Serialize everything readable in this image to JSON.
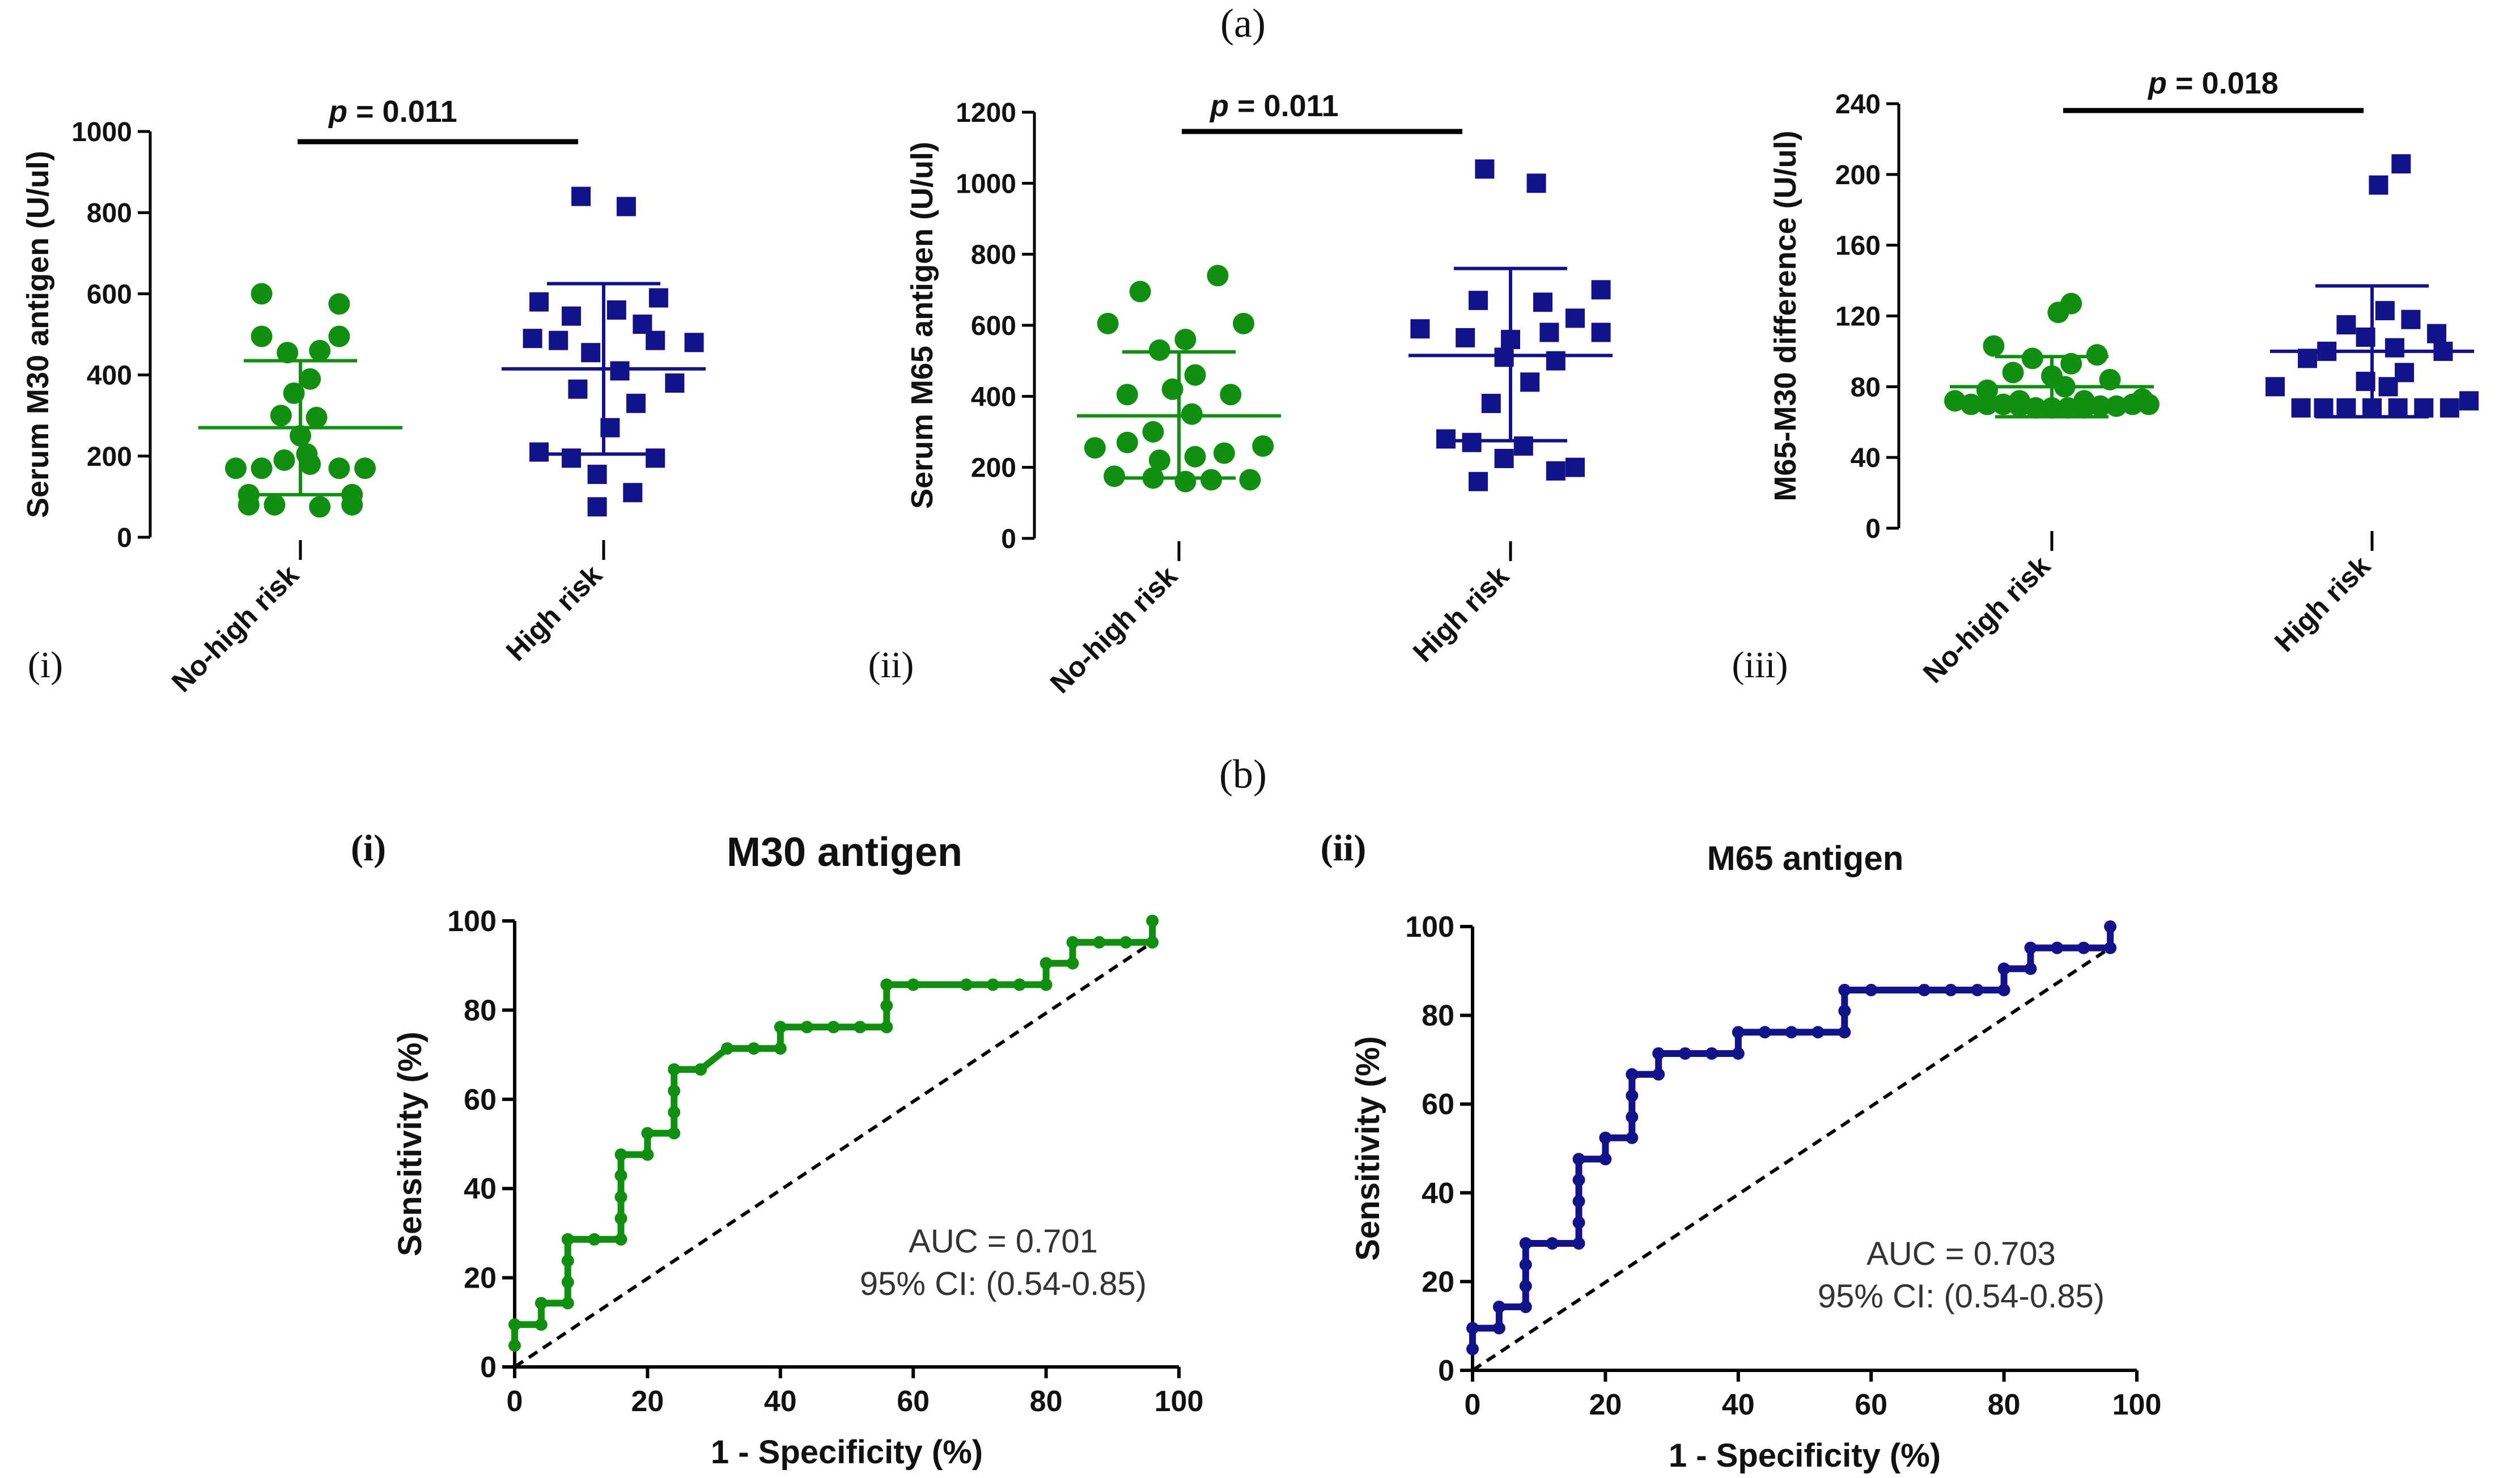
{
  "figure": {
    "label_a": "(a)",
    "label_b": "(b)"
  },
  "colors": {
    "green": "#118f11",
    "blue": "#12128a",
    "black": "#000000"
  },
  "chart_data": [
    {
      "id": "a-i",
      "type": "scatter",
      "panel_label": "(i)",
      "ylabel": "Serum M30 antigen (U/ul)",
      "ylim": [
        0,
        1000
      ],
      "yticks": [
        "0",
        "200",
        "400",
        "600",
        "800",
        "1000"
      ],
      "categories": [
        "No-high risk",
        "High risk"
      ],
      "p_label": "p",
      "p_value": "= 0.011",
      "series": [
        {
          "name": "No-high risk",
          "color": "#118f11",
          "marker": "circle",
          "mean": 270,
          "sd_low": 105,
          "sd_high": 435,
          "points": [
            [
              -0.12,
              600
            ],
            [
              0.12,
              575
            ],
            [
              -0.12,
              495
            ],
            [
              0.12,
              495
            ],
            [
              -0.04,
              455
            ],
            [
              0.06,
              460
            ],
            [
              0.03,
              390
            ],
            [
              -0.02,
              355
            ],
            [
              -0.06,
              300
            ],
            [
              0.05,
              295
            ],
            [
              0,
              250
            ],
            [
              0.02,
              205
            ],
            [
              -0.05,
              190
            ],
            [
              0.03,
              180
            ],
            [
              -0.2,
              170
            ],
            [
              -0.12,
              170
            ],
            [
              0.12,
              170
            ],
            [
              0.2,
              170
            ],
            [
              -0.16,
              105
            ],
            [
              0.16,
              105
            ],
            [
              -0.08,
              80
            ],
            [
              0.06,
              75
            ],
            [
              -0.16,
              80
            ],
            [
              0.16,
              80
            ]
          ]
        },
        {
          "name": "High risk",
          "color": "#12128a",
          "marker": "square",
          "mean": 415,
          "sd_low": 205,
          "sd_high": 625,
          "points": [
            [
              -0.07,
              840
            ],
            [
              0.07,
              815
            ],
            [
              -0.2,
              580
            ],
            [
              0.17,
              590
            ],
            [
              0.04,
              560
            ],
            [
              -0.1,
              545
            ],
            [
              0.12,
              525
            ],
            [
              -0.22,
              490
            ],
            [
              -0.14,
              485
            ],
            [
              0.16,
              485
            ],
            [
              0.28,
              480
            ],
            [
              -0.04,
              455
            ],
            [
              0.05,
              410
            ],
            [
              0.22,
              380
            ],
            [
              -0.08,
              365
            ],
            [
              0.1,
              330
            ],
            [
              0.02,
              270
            ],
            [
              -0.2,
              210
            ],
            [
              -0.1,
              195
            ],
            [
              0.16,
              195
            ],
            [
              -0.02,
              155
            ],
            [
              0.09,
              110
            ],
            [
              -0.02,
              75
            ]
          ]
        }
      ]
    },
    {
      "id": "a-ii",
      "type": "scatter",
      "panel_label": "(ii)",
      "ylabel": "Serum M65 antigen (U/ul)",
      "ylim": [
        0,
        1200
      ],
      "yticks": [
        "0",
        "200",
        "400",
        "600",
        "800",
        "1000",
        "1200"
      ],
      "categories": [
        "No-high risk",
        "High risk"
      ],
      "p_label": "p",
      "p_value": "= 0.011",
      "series": [
        {
          "name": "No-high risk",
          "color": "#118f11",
          "marker": "circle",
          "mean": 345,
          "sd_low": 170,
          "sd_high": 525,
          "points": [
            [
              0.12,
              740
            ],
            [
              -0.12,
              695
            ],
            [
              -0.22,
              605
            ],
            [
              0.2,
              605
            ],
            [
              0.02,
              560
            ],
            [
              -0.06,
              530
            ],
            [
              0.05,
              460
            ],
            [
              -0.02,
              420
            ],
            [
              -0.16,
              405
            ],
            [
              0.16,
              405
            ],
            [
              0.04,
              350
            ],
            [
              -0.08,
              300
            ],
            [
              -0.26,
              255
            ],
            [
              -0.16,
              270
            ],
            [
              0.26,
              260
            ],
            [
              0.14,
              240
            ],
            [
              0.05,
              230
            ],
            [
              -0.06,
              220
            ],
            [
              -0.2,
              175
            ],
            [
              -0.08,
              170
            ],
            [
              0.1,
              165
            ],
            [
              0.22,
              165
            ],
            [
              0.02,
              160
            ]
          ]
        },
        {
          "name": "High risk",
          "color": "#12128a",
          "marker": "square",
          "mean": 515,
          "sd_low": 275,
          "sd_high": 760,
          "points": [
            [
              -0.08,
              1040
            ],
            [
              0.08,
              1000
            ],
            [
              -0.28,
              590
            ],
            [
              0.28,
              700
            ],
            [
              0.1,
              665
            ],
            [
              -0.1,
              670
            ],
            [
              0.2,
              620
            ],
            [
              0.12,
              580
            ],
            [
              -0.14,
              565
            ],
            [
              0,
              560
            ],
            [
              0.28,
              580
            ],
            [
              -0.02,
              510
            ],
            [
              0.14,
              500
            ],
            [
              0.06,
              440
            ],
            [
              -0.06,
              380
            ],
            [
              -0.2,
              280
            ],
            [
              -0.12,
              270
            ],
            [
              -0.02,
              225
            ],
            [
              0.04,
              260
            ],
            [
              0.14,
              190
            ],
            [
              -0.1,
              160
            ],
            [
              0.2,
              200
            ]
          ]
        }
      ]
    },
    {
      "id": "a-iii",
      "type": "scatter",
      "panel_label": "(iii)",
      "ylabel": "M65-M30 difference (U/ul)",
      "ylim": [
        0,
        240
      ],
      "yticks": [
        "0",
        "40",
        "80",
        "120",
        "160",
        "200",
        "240"
      ],
      "categories": [
        "No-high risk",
        "High risk"
      ],
      "p_label": "p",
      "p_value": "= 0.018",
      "series": [
        {
          "name": "No-high risk",
          "color": "#118f11",
          "marker": "circle",
          "mean": 80,
          "sd_low": 63,
          "sd_high": 97,
          "points": [
            [
              0.06,
              127
            ],
            [
              0.02,
              122
            ],
            [
              -0.18,
              103
            ],
            [
              0.14,
              98
            ],
            [
              -0.06,
              96
            ],
            [
              0.06,
              93
            ],
            [
              -0.12,
              88
            ],
            [
              0,
              86
            ],
            [
              0.18,
              84
            ],
            [
              -0.2,
              78
            ],
            [
              0.04,
              80
            ],
            [
              -0.1,
              72
            ],
            [
              0.1,
              72
            ],
            [
              0.28,
              73
            ],
            [
              -0.3,
              72
            ],
            [
              -0.25,
              70
            ],
            [
              -0.2,
              70
            ],
            [
              -0.15,
              70
            ],
            [
              -0.1,
              69
            ],
            [
              -0.05,
              68
            ],
            [
              0,
              68
            ],
            [
              0.05,
              68
            ],
            [
              0.1,
              68
            ],
            [
              0.15,
              69
            ],
            [
              0.2,
              69
            ],
            [
              0.25,
              70
            ],
            [
              0.3,
              70
            ]
          ]
        },
        {
          "name": "High risk",
          "color": "#12128a",
          "marker": "square",
          "mean": 100,
          "sd_low": 63,
          "sd_high": 137,
          "points": [
            [
              0.09,
              206
            ],
            [
              0.02,
              194
            ],
            [
              0.04,
              123
            ],
            [
              -0.08,
              115
            ],
            [
              0.12,
              118
            ],
            [
              0.2,
              110
            ],
            [
              -0.02,
              108
            ],
            [
              0.07,
              102
            ],
            [
              -0.14,
              100
            ],
            [
              0.22,
              100
            ],
            [
              -0.2,
              96
            ],
            [
              0.1,
              88
            ],
            [
              -0.02,
              83
            ],
            [
              0.05,
              80
            ],
            [
              -0.3,
              80
            ],
            [
              0.3,
              72
            ],
            [
              -0.22,
              68
            ],
            [
              -0.15,
              68
            ],
            [
              -0.08,
              68
            ],
            [
              0,
              68
            ],
            [
              0.08,
              68
            ],
            [
              0.16,
              68
            ],
            [
              0.24,
              68
            ]
          ]
        }
      ]
    },
    {
      "id": "b-i",
      "type": "line",
      "panel_label": "(i)",
      "title": "M30 antigen",
      "xlabel": "1 - Specificity (%)",
      "ylabel": "Sensitivity (%)",
      "xlim": [
        0,
        100
      ],
      "ylim": [
        0,
        100
      ],
      "xticks": [
        "0",
        "20",
        "40",
        "60",
        "80",
        "100"
      ],
      "yticks": [
        "0",
        "20",
        "40",
        "60",
        "80",
        "100"
      ],
      "color": "#118f11",
      "auc_text": "AUC = 0.701",
      "ci_text": "95% CI: (0.54-0.85)",
      "roc": [
        [
          0,
          4.8
        ],
        [
          0,
          9.5
        ],
        [
          4,
          9.5
        ],
        [
          4,
          14.3
        ],
        [
          8,
          14.3
        ],
        [
          8,
          19
        ],
        [
          8,
          23.8
        ],
        [
          8,
          28.6
        ],
        [
          12,
          28.6
        ],
        [
          16,
          28.6
        ],
        [
          16,
          33.3
        ],
        [
          16,
          38.1
        ],
        [
          16,
          42.9
        ],
        [
          16,
          47.6
        ],
        [
          20,
          47.6
        ],
        [
          20,
          52.4
        ],
        [
          24,
          52.4
        ],
        [
          24,
          57.1
        ],
        [
          24,
          61.9
        ],
        [
          24,
          66.7
        ],
        [
          28,
          66.7
        ],
        [
          32,
          71.4
        ],
        [
          36,
          71.4
        ],
        [
          40,
          71.4
        ],
        [
          40,
          76.2
        ],
        [
          44,
          76.2
        ],
        [
          48,
          76.2
        ],
        [
          52,
          76.2
        ],
        [
          56,
          76.2
        ],
        [
          56,
          81
        ],
        [
          56,
          85.7
        ],
        [
          60,
          85.7
        ],
        [
          68,
          85.7
        ],
        [
          72,
          85.7
        ],
        [
          76,
          85.7
        ],
        [
          80,
          85.7
        ],
        [
          80,
          90.5
        ],
        [
          84,
          90.5
        ],
        [
          84,
          95.2
        ],
        [
          88,
          95.2
        ],
        [
          92,
          95.2
        ],
        [
          96,
          95.2
        ],
        [
          96,
          100
        ]
      ],
      "reference": [
        [
          0,
          0
        ],
        [
          96,
          95.2
        ]
      ]
    },
    {
      "id": "b-ii",
      "type": "line",
      "panel_label": "(ii)",
      "title": "M65 antigen",
      "xlabel": "1 - Specificity (%)",
      "ylabel": "Sensitivity (%)",
      "xlim": [
        0,
        100
      ],
      "ylim": [
        0,
        100
      ],
      "xticks": [
        "0",
        "20",
        "40",
        "60",
        "80",
        "100"
      ],
      "yticks": [
        "0",
        "20",
        "40",
        "60",
        "80",
        "100"
      ],
      "color": "#12128a",
      "auc_text": "AUC = 0.703",
      "ci_text": "95% CI: (0.54-0.85)",
      "roc": [
        [
          0,
          4.8
        ],
        [
          0,
          9.5
        ],
        [
          4,
          9.5
        ],
        [
          4,
          14.3
        ],
        [
          8,
          14.3
        ],
        [
          8,
          19
        ],
        [
          8,
          23.8
        ],
        [
          8,
          28.6
        ],
        [
          12,
          28.6
        ],
        [
          16,
          28.6
        ],
        [
          16,
          33.3
        ],
        [
          16,
          38.1
        ],
        [
          16,
          42.9
        ],
        [
          16,
          47.6
        ],
        [
          20,
          47.6
        ],
        [
          20,
          52.4
        ],
        [
          24,
          52.4
        ],
        [
          24,
          57.1
        ],
        [
          24,
          61.9
        ],
        [
          24,
          66.7
        ],
        [
          28,
          66.7
        ],
        [
          28,
          71.4
        ],
        [
          32,
          71.4
        ],
        [
          36,
          71.4
        ],
        [
          40,
          71.4
        ],
        [
          40,
          76.2
        ],
        [
          44,
          76.2
        ],
        [
          48,
          76.2
        ],
        [
          52,
          76.2
        ],
        [
          56,
          76.2
        ],
        [
          56,
          81
        ],
        [
          56,
          85.7
        ],
        [
          60,
          85.7
        ],
        [
          68,
          85.7
        ],
        [
          72,
          85.7
        ],
        [
          76,
          85.7
        ],
        [
          80,
          85.7
        ],
        [
          80,
          90.5
        ],
        [
          84,
          90.5
        ],
        [
          84,
          95.2
        ],
        [
          88,
          95.2
        ],
        [
          92,
          95.2
        ],
        [
          96,
          95.2
        ],
        [
          96,
          100
        ]
      ],
      "reference": [
        [
          0,
          0
        ],
        [
          96,
          95.2
        ]
      ]
    }
  ]
}
